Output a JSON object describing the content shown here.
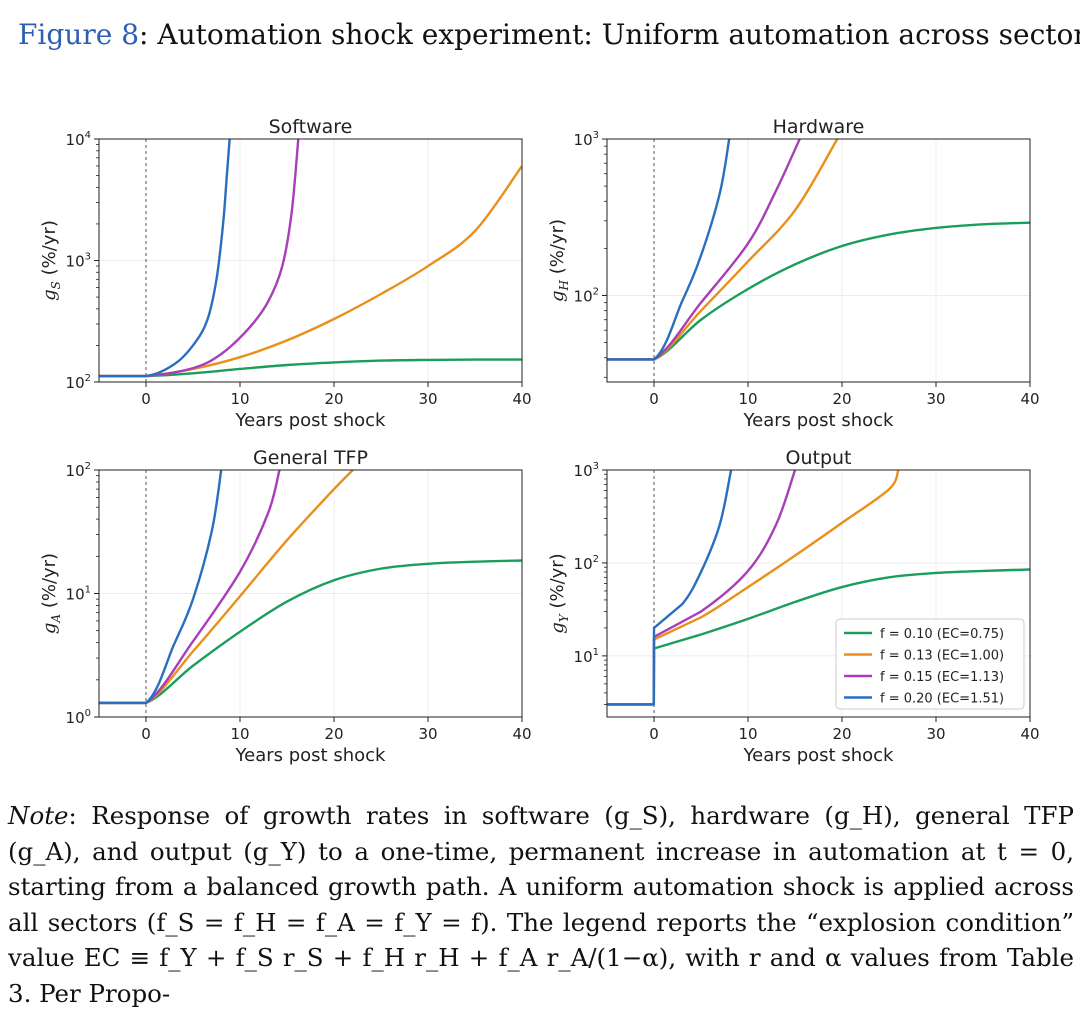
{
  "figure": {
    "label": "Figure 8",
    "colon": ":",
    "title": "Automation shock experiment: Uniform automation across sectors"
  },
  "chart_data": [
    {
      "type": "line",
      "title": "Software",
      "ylabel": "g_S (%/yr)",
      "ylabel_main": "g",
      "ylabel_sub": "S",
      "ylabel_tail": "(%/yr)",
      "xlabel": "Years post shock",
      "xlim": [
        -5,
        40
      ],
      "ylim": [
        100,
        10000
      ],
      "yscale": "log",
      "x_ticks": [
        0,
        10,
        20,
        30,
        40
      ],
      "y_tick_exps": [
        2,
        3,
        4
      ],
      "series": [
        {
          "legend": "f = 0.10 (EC=0.75)",
          "color": "#1a9e5c",
          "x": [
            -5,
            0,
            5,
            10,
            15,
            20,
            25,
            30,
            35,
            40
          ],
          "y": [
            112,
            112,
            118,
            128,
            138,
            145,
            150,
            152,
            153,
            153
          ]
        },
        {
          "legend": "f = 0.13 (EC=1.00)",
          "color": "#e8901a",
          "x": [
            -5,
            0,
            5,
            10,
            15,
            20,
            25,
            30,
            35,
            40
          ],
          "y": [
            112,
            112,
            128,
            160,
            220,
            330,
            530,
            900,
            1750,
            6000
          ]
        },
        {
          "legend": "f = 0.15 (EC=1.13)",
          "color": "#a83fb8",
          "x": [
            -5,
            0,
            5,
            8,
            11,
            13,
            14.5,
            15.5,
            16.2
          ],
          "y": [
            112,
            112,
            130,
            170,
            280,
            460,
            900,
            2500,
            10000
          ]
        },
        {
          "legend": "f = 0.20 (EC=1.51)",
          "color": "#2a6fbd",
          "x": [
            -5,
            0,
            3,
            5,
            6.5,
            7.5,
            8.2,
            8.6,
            8.9
          ],
          "y": [
            112,
            112,
            140,
            200,
            320,
            700,
            2000,
            5000,
            10000
          ]
        }
      ]
    },
    {
      "type": "line",
      "title": "Hardware",
      "ylabel": "g_H (%/yr)",
      "ylabel_main": "g",
      "ylabel_sub": "H",
      "ylabel_tail": "(%/yr)",
      "xlabel": "Years post shock",
      "xlim": [
        -5,
        40
      ],
      "ylim": [
        28,
        1000
      ],
      "yscale": "log",
      "x_ticks": [
        0,
        10,
        20,
        30,
        40
      ],
      "y_tick_exps": [
        2,
        3
      ],
      "series": [
        {
          "legend": "f = 0.10 (EC=0.75)",
          "color": "#1a9e5c",
          "x": [
            -5,
            0,
            5,
            10,
            15,
            20,
            25,
            30,
            35,
            40
          ],
          "y": [
            39,
            39,
            70,
            110,
            158,
            207,
            245,
            270,
            285,
            292
          ]
        },
        {
          "legend": "f = 0.13 (EC=1.00)",
          "color": "#e8901a",
          "x": [
            -5,
            0,
            5,
            10,
            15,
            19.5
          ],
          "y": [
            39,
            39,
            80,
            165,
            350,
            1000
          ]
        },
        {
          "legend": "f = 0.15 (EC=1.13)",
          "color": "#a83fb8",
          "x": [
            -5,
            0,
            5,
            10,
            13,
            15.5
          ],
          "y": [
            39,
            39,
            90,
            215,
            470,
            1000
          ]
        },
        {
          "legend": "f = 0.20 (EC=1.51)",
          "color": "#2a6fbd",
          "x": [
            -5,
            0,
            3,
            5,
            7,
            8
          ],
          "y": [
            39,
            39,
            92,
            180,
            450,
            1000
          ]
        }
      ]
    },
    {
      "type": "line",
      "title": "General TFP",
      "ylabel": "g_A (%/yr)",
      "ylabel_main": "g",
      "ylabel_sub": "A",
      "ylabel_tail": "(%/yr)",
      "xlabel": "Years post shock",
      "xlim": [
        -5,
        40
      ],
      "ylim": [
        1,
        100
      ],
      "yscale": "log",
      "x_ticks": [
        0,
        10,
        20,
        30,
        40
      ],
      "y_tick_exps": [
        0,
        1,
        2
      ],
      "series": [
        {
          "legend": "f = 0.10 (EC=0.75)",
          "color": "#1a9e5c",
          "x": [
            -5,
            0,
            5,
            10,
            15,
            20,
            25,
            30,
            35,
            40
          ],
          "y": [
            1.3,
            1.3,
            2.6,
            4.9,
            8.6,
            12.8,
            15.9,
            17.4,
            18.1,
            18.5
          ]
        },
        {
          "legend": "f = 0.13 (EC=1.00)",
          "color": "#e8901a",
          "x": [
            -5,
            0,
            5,
            10,
            15,
            20,
            22
          ],
          "y": [
            1.3,
            1.3,
            3.4,
            9.5,
            27,
            70,
            100
          ]
        },
        {
          "legend": "f = 0.15 (EC=1.13)",
          "color": "#a83fb8",
          "x": [
            -5,
            0,
            5,
            10,
            13,
            14.2
          ],
          "y": [
            1.3,
            1.3,
            4.1,
            15,
            45,
            100
          ]
        },
        {
          "legend": "f = 0.20 (EC=1.51)",
          "color": "#2a6fbd",
          "x": [
            -5,
            0,
            3,
            5,
            7,
            8
          ],
          "y": [
            1.3,
            1.3,
            3.9,
            9,
            32,
            100
          ]
        }
      ]
    },
    {
      "type": "line",
      "title": "Output",
      "ylabel": "g_Y (%/yr)",
      "ylabel_main": "g",
      "ylabel_sub": "Y",
      "ylabel_tail": "(%/yr)",
      "xlabel": "Years post shock",
      "xlim": [
        -5,
        40
      ],
      "ylim": [
        2.2,
        1000
      ],
      "yscale": "log",
      "x_ticks": [
        0,
        10,
        20,
        30,
        40
      ],
      "y_tick_exps": [
        1,
        2,
        3
      ],
      "legend": "bottom-right",
      "series": [
        {
          "legend": "f = 0.10 (EC=0.75)",
          "color": "#1a9e5c",
          "x": [
            -5,
            -0.02,
            0,
            5,
            10,
            15,
            20,
            25,
            30,
            35,
            40
          ],
          "y": [
            3,
            3,
            12,
            17,
            25,
            38,
            55,
            70,
            78,
            82,
            85
          ]
        },
        {
          "legend": "f = 0.13 (EC=1.00)",
          "color": "#e8901a",
          "x": [
            -5,
            -0.02,
            0,
            5,
            10,
            15,
            20,
            25,
            26
          ],
          "y": [
            3,
            3,
            15,
            26,
            55,
            120,
            270,
            620,
            1000
          ]
        },
        {
          "legend": "f = 0.15 (EC=1.13)",
          "color": "#a83fb8",
          "x": [
            -5,
            -0.02,
            0,
            5,
            10,
            13,
            15
          ],
          "y": [
            3,
            3,
            16,
            30,
            82,
            260,
            1000
          ]
        },
        {
          "legend": "f = 0.20 (EC=1.51)",
          "color": "#2a6fbd",
          "x": [
            -5,
            -0.02,
            0,
            3,
            5,
            7,
            8.2
          ],
          "y": [
            3,
            3,
            20,
            36,
            80,
            260,
            1000
          ]
        }
      ]
    }
  ],
  "note": {
    "label": "Note",
    "text": ": Response of growth rates in software (g_S), hardware (g_H), general TFP (g_A), and output (g_Y) to a one-time, permanent increase in automation at t = 0, starting from a balanced growth path. A uniform automation shock is applied across all sectors (f_S = f_H = f_A = f_Y = f). The legend reports the “explosion condition” value EC ≡ f_Y + f_S r_S + f_H r_H + f_A r_A/(1−α), with r and α values from Table 3. Per Propo-"
  }
}
